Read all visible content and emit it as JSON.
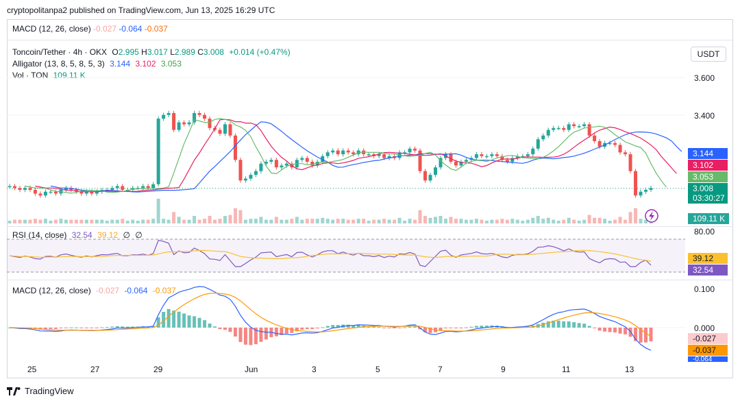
{
  "header": {
    "publisher": "cryptopolitanpa2 published on TradingView.com, Jun 13, 2025 16:29 UTC"
  },
  "macd_top": {
    "label": "MACD (12, 26, close)",
    "v1": "-0.027",
    "v2": "-0.064",
    "v3": "-0.037"
  },
  "symbol": {
    "name": "Toncoin/Tether · 4h · OKX",
    "o_label": "O",
    "o": "2.995",
    "h_label": "H",
    "h": "3.017",
    "l_label": "L",
    "l": "2.989",
    "c_label": "C",
    "c": "3.008",
    "change": "+0.014 (+0.47%)"
  },
  "alligator": {
    "label": "Alligator (13, 8, 5, 8, 5, 3)",
    "jaw": "3.144",
    "teeth": "3.102",
    "lips": "3.053"
  },
  "volume": {
    "label": "Vol · TON",
    "value": "109.11 K"
  },
  "currency": "USDT",
  "price_axis": [
    "3.600",
    "3.400"
  ],
  "badges": {
    "jaw": "3.144",
    "teeth": "3.102",
    "lips": "3.053",
    "last": "3.008",
    "countdown": "03:30:27",
    "vol": "109.11 K"
  },
  "rsi": {
    "label": "RSI (14, close)",
    "v1": "32.54",
    "v2": "39.12",
    "v3": "∅",
    "v4": "∅",
    "axis_top": "80.00",
    "badge_ma": "39.12",
    "badge_rsi": "32.54"
  },
  "macd": {
    "label": "MACD (12, 26, close)",
    "v1": "-0.027",
    "v2": "-0.064",
    "v3": "-0.037",
    "axis_top": "0.100",
    "axis_zero": "0.000",
    "badge_hist": "-0.027",
    "badge_signal": "-0.037",
    "badge_macd": "-0.064"
  },
  "x_axis": [
    "25",
    "27",
    "29",
    "Jun",
    "3",
    "5",
    "7",
    "9",
    "11",
    "13"
  ],
  "footer": {
    "brand": "TradingView"
  },
  "colors": {
    "up": "#26a69a",
    "down": "#ef5350",
    "jaw": "#2962ff",
    "teeth": "#e91e63",
    "lips": "#66bb6a",
    "rsi": "#7e57c2",
    "rsi_ma": "#fbc02d",
    "macd": "#2962ff",
    "signal": "#ff9800"
  },
  "chart_data": {
    "type": "candlestick",
    "title": "Toncoin/Tether · 4h · OKX",
    "x_ticks": [
      "25",
      "27",
      "29",
      "Jun",
      "3",
      "5",
      "7",
      "9",
      "11",
      "13"
    ],
    "ylim": [
      2.85,
      3.75
    ],
    "close_series": [
      3.02,
      3.01,
      3.0,
      3.01,
      3.0,
      2.98,
      2.97,
      2.99,
      2.99,
      2.98,
      3.0,
      3.01,
      3.0,
      2.99,
      2.98,
      2.99,
      2.98,
      2.99,
      3.0,
      3.0,
      3.01,
      3.02,
      3.0,
      3.0,
      3.01,
      3.01,
      3.02,
      3.01,
      3.03,
      3.38,
      3.4,
      3.41,
      3.32,
      3.36,
      3.35,
      3.36,
      3.41,
      3.4,
      3.38,
      3.33,
      3.32,
      3.3,
      3.35,
      3.29,
      3.16,
      3.05,
      3.06,
      3.08,
      3.1,
      3.14,
      3.15,
      3.16,
      3.12,
      3.13,
      3.14,
      3.12,
      3.16,
      3.17,
      3.15,
      3.13,
      3.15,
      3.18,
      3.2,
      3.21,
      3.19,
      3.21,
      3.2,
      3.19,
      3.21,
      3.19,
      3.19,
      3.18,
      3.19,
      3.17,
      3.18,
      3.17,
      3.2,
      3.2,
      3.22,
      3.21,
      3.1,
      3.05,
      3.08,
      3.12,
      3.17,
      3.19,
      3.15,
      3.13,
      3.15,
      3.16,
      3.17,
      3.19,
      3.18,
      3.18,
      3.19,
      3.18,
      3.16,
      3.15,
      3.17,
      3.18,
      3.18,
      3.19,
      3.22,
      3.27,
      3.29,
      3.32,
      3.33,
      3.33,
      3.32,
      3.35,
      3.34,
      3.34,
      3.35,
      3.29,
      3.26,
      3.23,
      3.25,
      3.25,
      3.24,
      3.2,
      3.19,
      3.1,
      2.97,
      2.99,
      3.0,
      3.01
    ],
    "jaw": 3.144,
    "teeth": 3.102,
    "lips": 3.053,
    "last": 3.008,
    "volume_last": "109.11 K",
    "rsi_range": [
      20,
      80
    ],
    "rsi_last": 32.54,
    "rsi_ma_last": 39.12,
    "macd_last": -0.064,
    "signal_last": -0.037,
    "hist_last": -0.027
  }
}
